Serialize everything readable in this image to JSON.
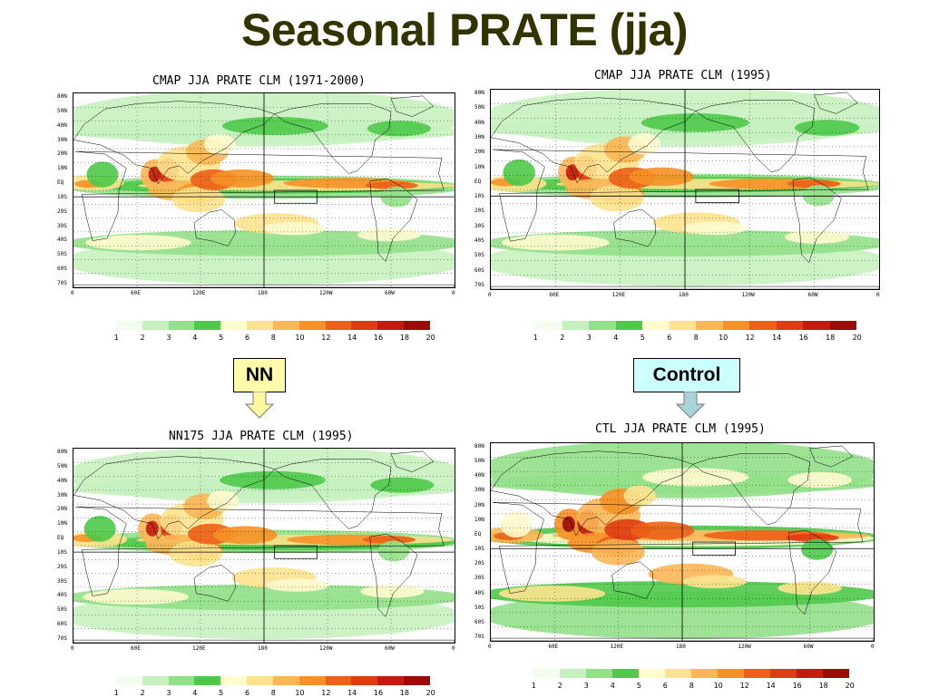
{
  "slide": {
    "title": "Seasonal PRATE (jja)"
  },
  "colors": {
    "title": "#333300",
    "scale": [
      "#f2fdf0",
      "#c6f1bf",
      "#93e08a",
      "#4ec94a",
      "#fefbcf",
      "#fde38f",
      "#fbb656",
      "#f69127",
      "#ec6117",
      "#de3c13",
      "#c31b0d",
      "#9c0b05"
    ]
  },
  "scale_labels": [
    "1",
    "2",
    "3",
    "4",
    "5",
    "6",
    "8",
    "10",
    "12",
    "14",
    "16",
    "18",
    "20"
  ],
  "lat_labels": [
    "80N",
    "50N",
    "40N",
    "30N",
    "20N",
    "10N",
    "EQ",
    "10S",
    "20S",
    "30S",
    "40S",
    "50S",
    "60S",
    "70S"
  ],
  "lon_labels": [
    "0",
    "60E",
    "120E",
    "180",
    "120W",
    "60W",
    "0"
  ],
  "maps": [
    {
      "title": "CMAP JJA PRATE CLM (1971-2000)"
    },
    {
      "title": "CMAP JJA PRATE CLM (1995)"
    },
    {
      "title": "NN175 JJA PRATE CLM (1995)"
    },
    {
      "title": "CTL JJA PRATE CLM (1995)"
    }
  ],
  "tags": {
    "nn": "NN",
    "control": "Control"
  },
  "tag_colors": {
    "nn": "#fffbab",
    "control": "#ccffff",
    "nn_arrow": "#fff7a0",
    "control_arrow": "#a9d3d8"
  }
}
